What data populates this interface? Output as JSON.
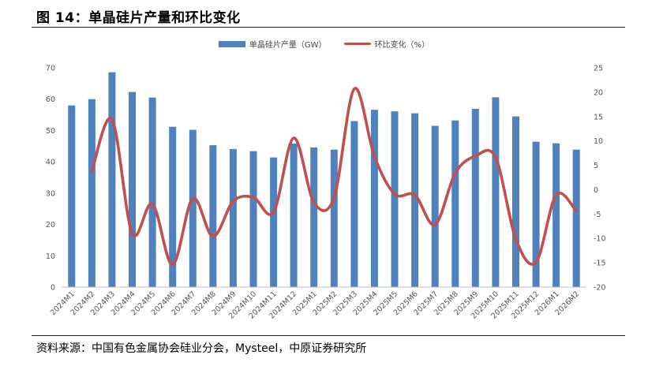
{
  "title": "图 14：单晶硅片产量和环比变化",
  "source": "资料来源：中国有色金属协会硅业分会，Mysteel，中原证券研究所",
  "chart_data": {
    "type": "bar+line",
    "categories": [
      "2024M1",
      "2024M2",
      "2024M3",
      "2024M4",
      "2024M5",
      "2024M6",
      "2024M7",
      "2024M8",
      "2024M9",
      "2024M10",
      "2024M11",
      "2024M12",
      "2025M1",
      "2025M2",
      "2025M3",
      "2025M4",
      "2025M5",
      "2025M6",
      "2025M7",
      "2025M8",
      "2025M9",
      "2025M10",
      "2025M11",
      "2025M12",
      "2026M1",
      "2026M2"
    ],
    "series": [
      {
        "name": "单晶硅片产量（GW）",
        "type": "bar",
        "axis": "left",
        "values": [
          58.0,
          60.0,
          68.6,
          62.3,
          60.5,
          51.2,
          50.2,
          45.3,
          44.1,
          43.4,
          41.4,
          45.8,
          44.6,
          43.9,
          53.0,
          56.6,
          56.1,
          55.5,
          51.5,
          53.2,
          56.9,
          60.6,
          54.5,
          46.4,
          45.9,
          43.9
        ]
      },
      {
        "name": "环比变化（%）",
        "type": "line",
        "axis": "right",
        "values": [
          null,
          3.8,
          14.4,
          -9.0,
          -2.9,
          -15.4,
          -1.8,
          -9.6,
          -2.4,
          -1.6,
          -4.6,
          10.6,
          -2.6,
          -1.6,
          20.7,
          6.8,
          -0.9,
          -1.1,
          -7.2,
          3.4,
          6.9,
          6.6,
          -10.1,
          -14.9,
          -1.1,
          -4.4
        ]
      }
    ],
    "ylim_left": [
      0,
      70
    ],
    "yticks_left": [
      0,
      10,
      20,
      30,
      40,
      50,
      60,
      70
    ],
    "ylim_right": [
      -20,
      25
    ],
    "yticks_right": [
      -20,
      -15,
      -10,
      -5,
      0,
      5,
      10,
      15,
      20,
      25
    ],
    "grid": false,
    "legend_position": "top-center",
    "colors": {
      "bar": "#4f81bd",
      "line": "#c0504d",
      "axis": "#bfbfbf",
      "tick_text": "#555555"
    }
  }
}
